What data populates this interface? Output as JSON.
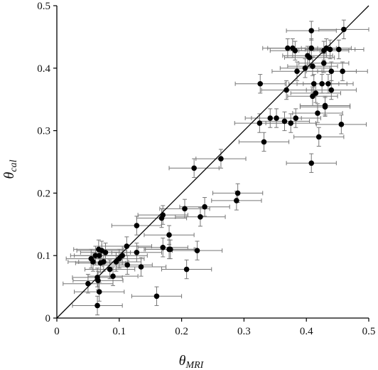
{
  "chart_data": {
    "type": "scatter",
    "xlabel_main": "θ",
    "xlabel_sub": "MRI",
    "ylabel_main": "θ",
    "ylabel_sub": "cal",
    "xlim": [
      0,
      0.5
    ],
    "ylim": [
      0,
      0.5
    ],
    "x_ticks": [
      "0",
      "0.1",
      "0.2",
      "0.3",
      "0.4",
      "0.5"
    ],
    "y_ticks": [
      "0",
      "0.1",
      "0.2",
      "0.3",
      "0.4",
      "0.5"
    ],
    "grid": false,
    "reference_line": {
      "from": [
        0,
        0
      ],
      "to": [
        0.5,
        0.5
      ]
    },
    "error_bars": {
      "x": 0.04,
      "y": 0.015
    },
    "points": [
      {
        "x": 0.05,
        "y": 0.055
      },
      {
        "x": 0.055,
        "y": 0.095
      },
      {
        "x": 0.058,
        "y": 0.09
      },
      {
        "x": 0.062,
        "y": 0.1
      },
      {
        "x": 0.065,
        "y": 0.065
      },
      {
        "x": 0.066,
        "y": 0.06
      },
      {
        "x": 0.067,
        "y": 0.11
      },
      {
        "x": 0.068,
        "y": 0.1
      },
      {
        "x": 0.065,
        "y": 0.02
      },
      {
        "x": 0.068,
        "y": 0.042
      },
      {
        "x": 0.07,
        "y": 0.088
      },
      {
        "x": 0.072,
        "y": 0.108
      },
      {
        "x": 0.075,
        "y": 0.09
      },
      {
        "x": 0.078,
        "y": 0.105
      },
      {
        "x": 0.085,
        "y": 0.078
      },
      {
        "x": 0.09,
        "y": 0.067
      },
      {
        "x": 0.095,
        "y": 0.09
      },
      {
        "x": 0.1,
        "y": 0.095
      },
      {
        "x": 0.105,
        "y": 0.1
      },
      {
        "x": 0.112,
        "y": 0.115
      },
      {
        "x": 0.113,
        "y": 0.085
      },
      {
        "x": 0.128,
        "y": 0.105
      },
      {
        "x": 0.128,
        "y": 0.148
      },
      {
        "x": 0.135,
        "y": 0.082
      },
      {
        "x": 0.16,
        "y": 0.035
      },
      {
        "x": 0.168,
        "y": 0.16
      },
      {
        "x": 0.17,
        "y": 0.165
      },
      {
        "x": 0.17,
        "y": 0.113
      },
      {
        "x": 0.18,
        "y": 0.11
      },
      {
        "x": 0.18,
        "y": 0.133
      },
      {
        "x": 0.182,
        "y": 0.11
      },
      {
        "x": 0.205,
        "y": 0.175
      },
      {
        "x": 0.208,
        "y": 0.078
      },
      {
        "x": 0.22,
        "y": 0.24
      },
      {
        "x": 0.225,
        "y": 0.108
      },
      {
        "x": 0.23,
        "y": 0.162
      },
      {
        "x": 0.237,
        "y": 0.178
      },
      {
        "x": 0.263,
        "y": 0.255
      },
      {
        "x": 0.288,
        "y": 0.188
      },
      {
        "x": 0.29,
        "y": 0.2
      },
      {
        "x": 0.325,
        "y": 0.312
      },
      {
        "x": 0.326,
        "y": 0.375
      },
      {
        "x": 0.332,
        "y": 0.282
      },
      {
        "x": 0.342,
        "y": 0.32
      },
      {
        "x": 0.352,
        "y": 0.32
      },
      {
        "x": 0.365,
        "y": 0.315
      },
      {
        "x": 0.368,
        "y": 0.365
      },
      {
        "x": 0.37,
        "y": 0.432
      },
      {
        "x": 0.375,
        "y": 0.312
      },
      {
        "x": 0.378,
        "y": 0.432
      },
      {
        "x": 0.382,
        "y": 0.428
      },
      {
        "x": 0.383,
        "y": 0.32
      },
      {
        "x": 0.385,
        "y": 0.395
      },
      {
        "x": 0.398,
        "y": 0.4
      },
      {
        "x": 0.402,
        "y": 0.42
      },
      {
        "x": 0.405,
        "y": 0.417
      },
      {
        "x": 0.408,
        "y": 0.432
      },
      {
        "x": 0.408,
        "y": 0.46
      },
      {
        "x": 0.408,
        "y": 0.248
      },
      {
        "x": 0.41,
        "y": 0.355
      },
      {
        "x": 0.41,
        "y": 0.403
      },
      {
        "x": 0.412,
        "y": 0.375
      },
      {
        "x": 0.415,
        "y": 0.36
      },
      {
        "x": 0.418,
        "y": 0.328
      },
      {
        "x": 0.42,
        "y": 0.29
      },
      {
        "x": 0.425,
        "y": 0.375
      },
      {
        "x": 0.428,
        "y": 0.408
      },
      {
        "x": 0.428,
        "y": 0.428
      },
      {
        "x": 0.43,
        "y": 0.34
      },
      {
        "x": 0.43,
        "y": 0.338
      },
      {
        "x": 0.432,
        "y": 0.432
      },
      {
        "x": 0.435,
        "y": 0.375
      },
      {
        "x": 0.44,
        "y": 0.395
      },
      {
        "x": 0.438,
        "y": 0.43
      },
      {
        "x": 0.44,
        "y": 0.365
      },
      {
        "x": 0.452,
        "y": 0.43
      },
      {
        "x": 0.456,
        "y": 0.31
      },
      {
        "x": 0.458,
        "y": 0.395
      },
      {
        "x": 0.46,
        "y": 0.462
      }
    ]
  }
}
